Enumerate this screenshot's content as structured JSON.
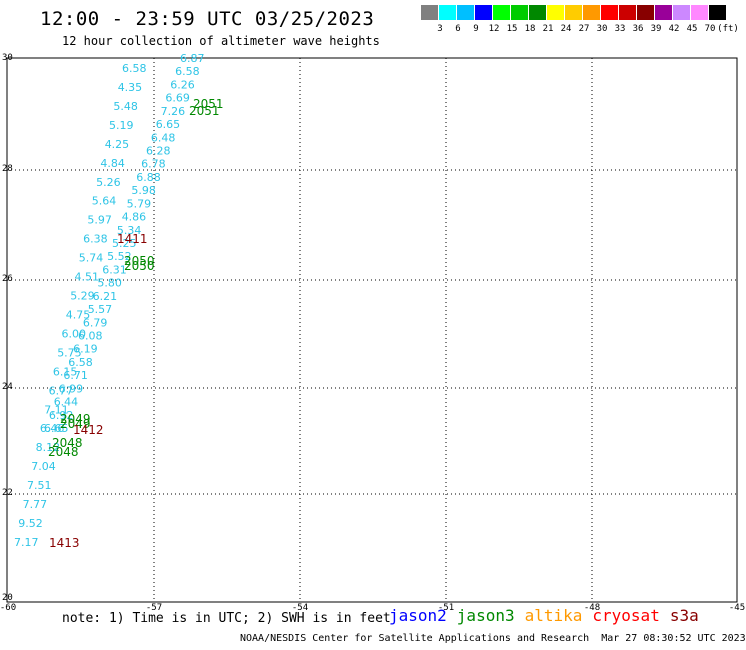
{
  "title": "12:00 - 23:59 UTC 03/25/2023",
  "subtitle": "12 hour collection of altimeter wave heights",
  "scale": {
    "colors": [
      "#808080",
      "#00ffff",
      "#00bfff",
      "#0000ff",
      "#00ff00",
      "#00cc00",
      "#008800",
      "#ffff00",
      "#ffcc00",
      "#ff9900",
      "#ff0000",
      "#cc0000",
      "#880000",
      "#990099",
      "#cc88ff",
      "#ff88ff",
      "#000000"
    ],
    "labels": [
      "3",
      "6",
      "9",
      "12",
      "15",
      "18",
      "21",
      "24",
      "27",
      "30",
      "33",
      "36",
      "39",
      "42",
      "45",
      "70",
      "(ft)"
    ]
  },
  "axes": {
    "lat_ticks": [
      "30",
      "28",
      "26",
      "24",
      "22",
      "20"
    ],
    "lon_ticks": [
      "-60",
      "-57",
      "-54",
      "-51",
      "-48",
      "-45"
    ]
  },
  "tracks": {
    "swh_left": [
      "6.58",
      "4.35",
      "5.48",
      "5.19",
      "4.25",
      "4.84",
      "5.26",
      "5.64",
      "5.97",
      "6.38",
      "5.74",
      "4.51",
      "5.29",
      "4.75",
      "6.00",
      "5.75",
      "6.15",
      "6.77",
      "7.11",
      "6.46",
      "8.12",
      "7.04",
      "7.51",
      "7.77",
      "9.52",
      "7.17"
    ],
    "swh_right": [
      "6.87",
      "6.58",
      "6.26",
      "6.69",
      "7.26",
      "6.65",
      "6.48",
      "6.28",
      "6.78",
      "6.88",
      "5.98",
      "5.79",
      "4.86",
      "5.34",
      "5.25",
      "5.52",
      "6.31",
      "5.80",
      "6.21",
      "5.57",
      "6.79",
      "6.08",
      "6.19",
      "6.58",
      "6.71",
      "6.99",
      "6.44",
      "6.92",
      "6.65"
    ],
    "jason3_labels": [
      "2051",
      "2051",
      "2050",
      "2050",
      "2049",
      "2049",
      "2048",
      "2048"
    ],
    "cryosat_labels": [
      "1411",
      "1412",
      "1413"
    ]
  },
  "note": "note: 1) Time is in UTC; 2) SWH is in feet",
  "satellites": [
    {
      "name": "jason2",
      "color": "#0000ff"
    },
    {
      "name": "jason3",
      "color": "#008800"
    },
    {
      "name": "altika",
      "color": "#ff9900"
    },
    {
      "name": "cryosat",
      "color": "#ff0000"
    },
    {
      "name": "s3a",
      "color": "#880000"
    }
  ],
  "footer": {
    "org": "NOAA/NESDIS Center for Satellite Applications and Research",
    "timestamp": "Mar 27 08:30:52 UTC 2023"
  }
}
